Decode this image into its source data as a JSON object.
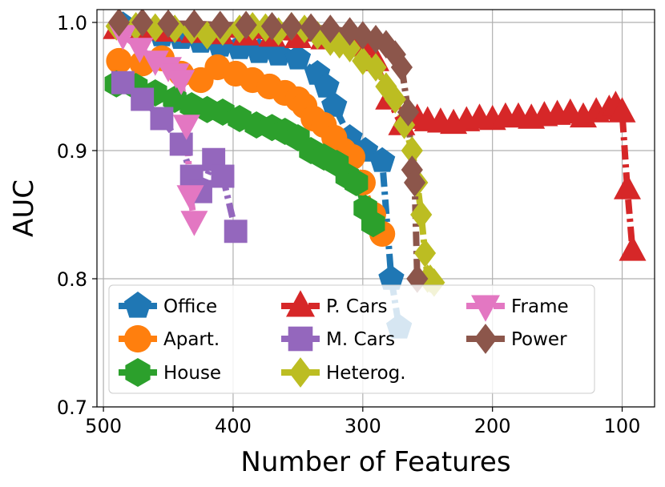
{
  "chart_data": {
    "type": "line",
    "title": "",
    "xlabel": "Number of Features",
    "ylabel": "AUC",
    "xlim": [
      505,
      75
    ],
    "ylim": [
      0.7,
      1.01
    ],
    "x_inverted": true,
    "xticks": [
      500,
      400,
      300,
      200,
      100
    ],
    "yticks": [
      0.7,
      0.8,
      0.9,
      1.0
    ],
    "xtick_labels": [
      "500",
      "400",
      "300",
      "200",
      "100"
    ],
    "ytick_labels": [
      "0.7",
      "0.8",
      "0.9",
      "1.0"
    ],
    "grid": true,
    "legend": {
      "placement": "lower-left",
      "columns": 3
    },
    "series": [
      {
        "name": "Office",
        "color": "#1f77b4",
        "marker": "pentagon",
        "x": [
          485,
          470,
          455,
          440,
          425,
          410,
          395,
          380,
          365,
          350,
          335,
          328,
          322,
          310,
          298,
          285,
          278,
          272
        ],
        "y": [
          0.998,
          0.993,
          0.99,
          0.988,
          0.985,
          0.982,
          0.98,
          0.977,
          0.975,
          0.972,
          0.96,
          0.95,
          0.935,
          0.91,
          0.9,
          0.892,
          0.8,
          0.762
        ]
      },
      {
        "name": "Apart.",
        "color": "#ff7f0e",
        "marker": "circle",
        "x": [
          488,
          470,
          455,
          440,
          425,
          412,
          398,
          385,
          372,
          360,
          350,
          345,
          338,
          330,
          322,
          315,
          308,
          300,
          292,
          285
        ],
        "y": [
          0.97,
          0.968,
          0.972,
          0.96,
          0.955,
          0.965,
          0.96,
          0.955,
          0.95,
          0.945,
          0.94,
          0.935,
          0.925,
          0.92,
          0.91,
          0.9,
          0.895,
          0.875,
          0.85,
          0.835
        ]
      },
      {
        "name": "House",
        "color": "#2ca02c",
        "marker": "hexagon",
        "x": [
          490,
          475,
          460,
          445,
          432,
          420,
          408,
          395,
          382,
          370,
          360,
          350,
          340,
          330,
          320,
          312,
          305,
          298,
          292
        ],
        "y": [
          0.952,
          0.95,
          0.945,
          0.94,
          0.935,
          0.932,
          0.93,
          0.925,
          0.92,
          0.918,
          0.915,
          0.91,
          0.9,
          0.895,
          0.89,
          0.88,
          0.875,
          0.855,
          0.843
        ]
      },
      {
        "name": "P. Cars",
        "color": "#d62728",
        "marker": "triangle-up",
        "x": [
          490,
          470,
          450,
          430,
          410,
          390,
          370,
          350,
          330,
          310,
          300,
          290,
          280,
          270,
          262,
          258,
          250,
          240,
          230,
          220,
          210,
          200,
          190,
          180,
          170,
          160,
          150,
          140,
          130,
          120,
          110,
          105,
          100,
          96,
          92
        ],
        "y": [
          0.995,
          0.994,
          0.993,
          0.992,
          0.991,
          0.99,
          0.989,
          0.988,
          0.987,
          0.985,
          0.982,
          0.97,
          0.94,
          0.92,
          0.925,
          0.925,
          0.923,
          0.922,
          0.921,
          0.923,
          0.925,
          0.924,
          0.926,
          0.926,
          0.925,
          0.927,
          0.928,
          0.929,
          0.926,
          0.93,
          0.932,
          0.935,
          0.93,
          0.87,
          0.822
        ]
      },
      {
        "name": "M. Cars",
        "color": "#9467bd",
        "marker": "square",
        "x": [
          485,
          470,
          455,
          440,
          432,
          425,
          415,
          408,
          398
        ],
        "y": [
          0.953,
          0.94,
          0.925,
          0.905,
          0.88,
          0.868,
          0.893,
          0.88,
          0.837
        ]
      },
      {
        "name": "Heterog.",
        "color": "#bcbd22",
        "marker": "diamond",
        "x": [
          490,
          475,
          460,
          445,
          432,
          420,
          408,
          395,
          385,
          375,
          365,
          355,
          345,
          335,
          325,
          318,
          310,
          300,
          290,
          282,
          275,
          268,
          262,
          258,
          255,
          252,
          250,
          248,
          245
        ],
        "y": [
          0.997,
          0.997,
          0.996,
          0.995,
          0.994,
          0.99,
          0.993,
          0.995,
          0.997,
          0.996,
          0.993,
          0.997,
          0.995,
          0.99,
          0.985,
          0.983,
          0.98,
          0.97,
          0.965,
          0.95,
          0.94,
          0.92,
          0.9,
          0.875,
          0.85,
          0.82,
          0.8,
          0.8,
          0.797
        ]
      },
      {
        "name": "Frame",
        "color": "#e377c2",
        "marker": "triangle-down",
        "x": [
          485,
          472,
          460,
          450,
          444,
          440,
          436,
          433,
          430
        ],
        "y": [
          0.99,
          0.98,
          0.97,
          0.965,
          0.96,
          0.955,
          0.92,
          0.865,
          0.845
        ]
      },
      {
        "name": "Power",
        "color": "#8c564b",
        "marker": "diamond",
        "x": [
          488,
          470,
          450,
          430,
          410,
          390,
          370,
          355,
          340,
          325,
          310,
          300,
          290,
          282,
          275,
          270,
          265,
          262,
          260,
          258
        ],
        "y": [
          1.0,
          1.0,
          0.999,
          0.999,
          0.998,
          0.998,
          0.997,
          0.997,
          0.996,
          0.995,
          0.993,
          0.99,
          0.987,
          0.983,
          0.975,
          0.965,
          0.93,
          0.885,
          0.875,
          0.8
        ]
      }
    ]
  }
}
